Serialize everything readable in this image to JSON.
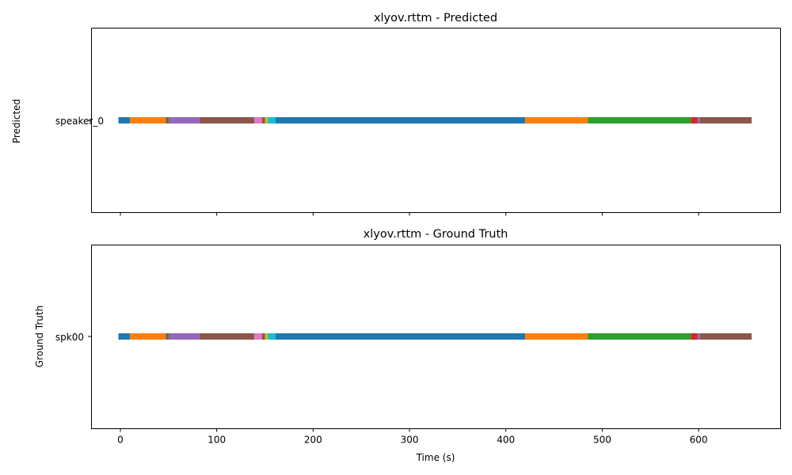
{
  "chart_data": [
    {
      "type": "timeline",
      "title": "xlyov.rttm - Predicted",
      "ylabel": "Predicted",
      "xlabel": "",
      "speaker": "speaker_0",
      "xlim": [
        -30,
        685
      ],
      "x_ticks": [
        0,
        100,
        200,
        300,
        400,
        500,
        600
      ],
      "show_x_tick_labels": false,
      "segments": [
        {
          "start": -2,
          "end": 10,
          "color": "#1f77b4"
        },
        {
          "start": 10,
          "end": 47,
          "color": "#ff7f0e"
        },
        {
          "start": 47,
          "end": 50,
          "color": "#8c564b"
        },
        {
          "start": 50,
          "end": 51,
          "color": "#2ca02c"
        },
        {
          "start": 51,
          "end": 82,
          "color": "#9467bd"
        },
        {
          "start": 82,
          "end": 139,
          "color": "#8c564b"
        },
        {
          "start": 139,
          "end": 147,
          "color": "#e377c2"
        },
        {
          "start": 147,
          "end": 150,
          "color": "#8c564b"
        },
        {
          "start": 150,
          "end": 153,
          "color": "#bcbd22"
        },
        {
          "start": 153,
          "end": 161,
          "color": "#17becf"
        },
        {
          "start": 161,
          "end": 420,
          "color": "#1f77b4"
        },
        {
          "start": 420,
          "end": 485,
          "color": "#ff7f0e"
        },
        {
          "start": 485,
          "end": 592,
          "color": "#2ca02c"
        },
        {
          "start": 592,
          "end": 599,
          "color": "#d62728"
        },
        {
          "start": 599,
          "end": 601,
          "color": "#9467bd"
        },
        {
          "start": 601,
          "end": 655,
          "color": "#8c564b"
        }
      ]
    },
    {
      "type": "timeline",
      "title": "xlyov.rttm - Ground Truth",
      "ylabel": "Ground Truth",
      "xlabel": "Time (s)",
      "speaker": "spk00",
      "xlim": [
        -30,
        685
      ],
      "x_ticks": [
        0,
        100,
        200,
        300,
        400,
        500,
        600
      ],
      "show_x_tick_labels": true,
      "segments": [
        {
          "start": -2,
          "end": 10,
          "color": "#1f77b4"
        },
        {
          "start": 10,
          "end": 47,
          "color": "#ff7f0e"
        },
        {
          "start": 47,
          "end": 50,
          "color": "#8c564b"
        },
        {
          "start": 50,
          "end": 51,
          "color": "#2ca02c"
        },
        {
          "start": 51,
          "end": 82,
          "color": "#9467bd"
        },
        {
          "start": 82,
          "end": 139,
          "color": "#8c564b"
        },
        {
          "start": 139,
          "end": 147,
          "color": "#e377c2"
        },
        {
          "start": 147,
          "end": 150,
          "color": "#8c564b"
        },
        {
          "start": 150,
          "end": 153,
          "color": "#bcbd22"
        },
        {
          "start": 153,
          "end": 161,
          "color": "#17becf"
        },
        {
          "start": 161,
          "end": 420,
          "color": "#1f77b4"
        },
        {
          "start": 420,
          "end": 485,
          "color": "#ff7f0e"
        },
        {
          "start": 485,
          "end": 592,
          "color": "#2ca02c"
        },
        {
          "start": 592,
          "end": 599,
          "color": "#d62728"
        },
        {
          "start": 599,
          "end": 601,
          "color": "#9467bd"
        },
        {
          "start": 601,
          "end": 655,
          "color": "#8c564b"
        }
      ]
    }
  ]
}
